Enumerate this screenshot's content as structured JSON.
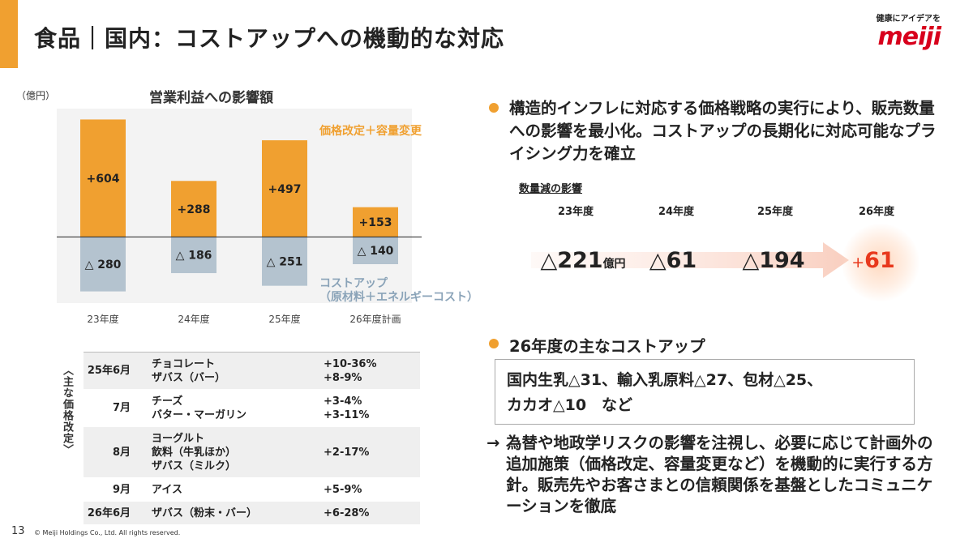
{
  "header": {
    "title": "食品｜国内：コストアップへの機動的な対応",
    "tagline": "健康にアイデアを",
    "logo_text": "meiji",
    "accent_color": "#f0a030",
    "logo_color": "#d8001c"
  },
  "chart_data": {
    "type": "bar",
    "title": "営業利益への影響額",
    "unit": "（億円）",
    "categories": [
      "23年度",
      "24年度",
      "25年度",
      "26年度計画"
    ],
    "series": [
      {
        "name": "価格改定＋容量変更",
        "values": [
          604,
          288,
          497,
          153
        ],
        "labels": [
          "+604",
          "+288",
          "+497",
          "+153"
        ],
        "color": "#f0a030"
      },
      {
        "name": "コストアップ\n（原材料＋エネルギーコスト）",
        "values": [
          -280,
          -186,
          -251,
          -140
        ],
        "labels": [
          "△ 280",
          "△ 186",
          "△ 251",
          "△ 140"
        ],
        "color": "#b4c3cf"
      }
    ],
    "ylim": [
      -340,
      660
    ]
  },
  "legend": {
    "price_label": "価格改定＋容量変更",
    "cost_label_1": "コストアップ",
    "cost_label_2": "（原材料＋エネルギーコスト）"
  },
  "price_table": {
    "side_label": "〈主な価格改定〉",
    "rows": [
      {
        "month": "25年6月",
        "items": [
          "チョコレート",
          "ザバス（バー）"
        ],
        "rates": [
          "+10-36%",
          "+8-9%"
        ]
      },
      {
        "month": "7月",
        "items": [
          "チーズ",
          "バター・マーガリン"
        ],
        "rates": [
          "+3-4%",
          "+3-11%"
        ]
      },
      {
        "month": "8月",
        "items": [
          "ヨーグルト",
          "飲料（牛乳ほか）",
          "ザバス（ミルク）"
        ],
        "rates": [
          "+2-17%"
        ]
      },
      {
        "month": "9月",
        "items": [
          "アイス"
        ],
        "rates": [
          "+5-9%"
        ]
      },
      {
        "month": "26年6月",
        "items": [
          "ザバス（粉末・バー）"
        ],
        "rates": [
          "+6-28%"
        ]
      }
    ]
  },
  "right": {
    "message1": "構造的インフレに対応する価格戦略の実行により、販売数量への影響を最小化。コストアップの長期化に対応可能なプライシング力を確立",
    "volume_title": "数量減の影響",
    "volume_years": [
      "23年度",
      "24年度",
      "25年度",
      "26年度"
    ],
    "volume_values": [
      {
        "main": "△221",
        "unit": "億円"
      },
      {
        "main": "△61",
        "unit": ""
      },
      {
        "main": "△194",
        "unit": ""
      },
      {
        "sign": "+",
        "main": "61",
        "unit": ""
      }
    ],
    "message2": "26年度の主なコストアップ",
    "cost_box_line1": "国内生乳△31、輸入乳原料△27、包材△25、",
    "cost_box_line2": "カカオ△10　など",
    "message3_arrow": "→",
    "message3": "為替や地政学リスクの影響を注視し、必要に応じて計画外の追加施策（価格改定、容量変更など）を機動的に実行する方針。販売先やお客さまとの信頼関係を基盤としたコミュニケーションを徹底"
  },
  "footer": {
    "page_number": "13",
    "copyright": "© Meiji Holdings Co., Ltd. All rights reserved."
  }
}
